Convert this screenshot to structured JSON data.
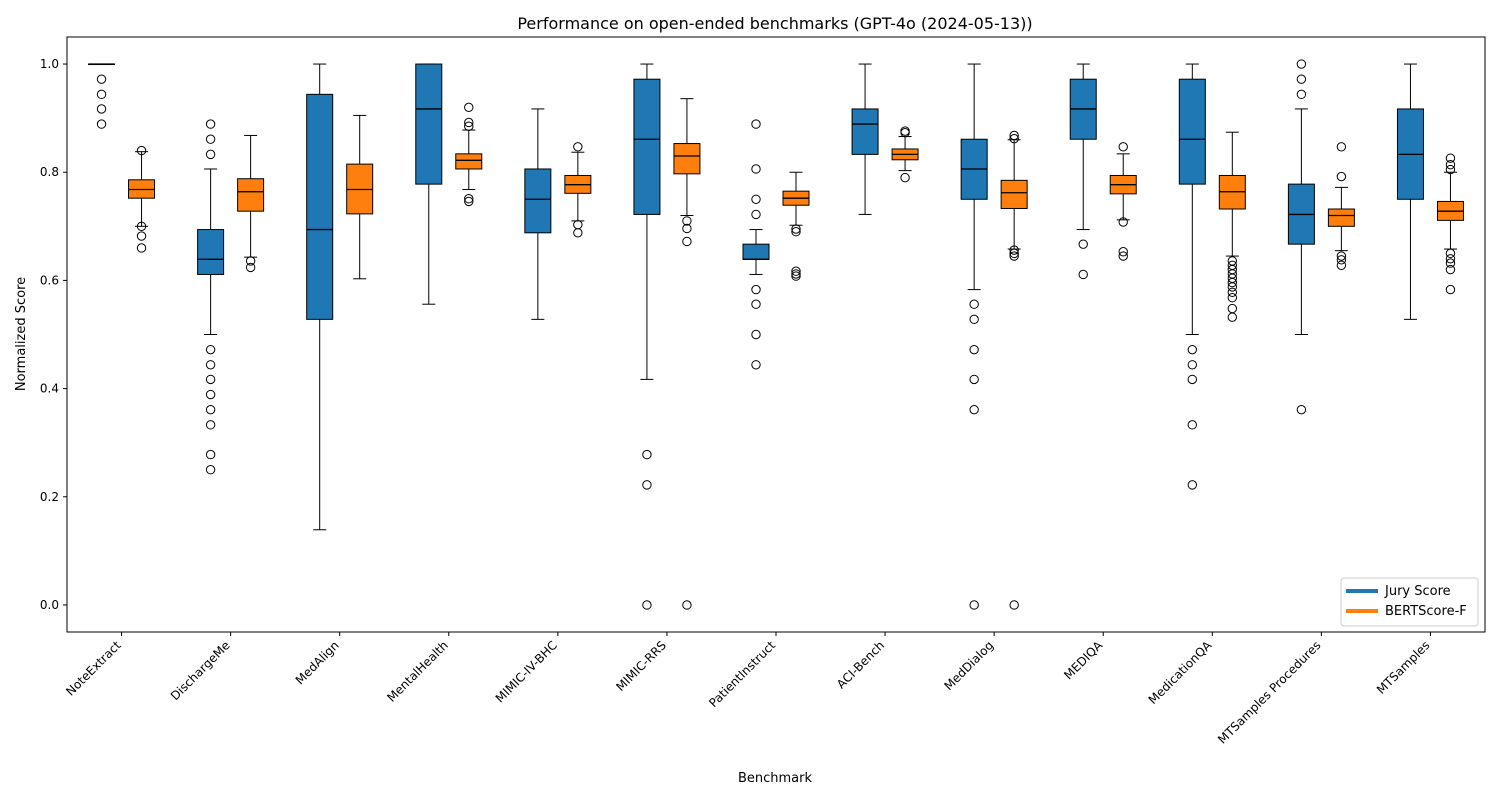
{
  "chart_data": {
    "type": "box",
    "title": "Performance on open-ended benchmarks (GPT-4o (2024-05-13))",
    "xlabel": "Benchmark",
    "ylabel": "Normalized Score",
    "ylim": [
      -0.05,
      1.05
    ],
    "yticks": [
      "0.0",
      "0.2",
      "0.4",
      "0.6",
      "0.8",
      "1.0"
    ],
    "legend": {
      "position": "bottom-right",
      "entries": [
        {
          "label": "Jury Score",
          "color": "#1f77b4"
        },
        {
          "label": "BERTScore-F",
          "color": "#ff7f0e"
        }
      ]
    },
    "categories": [
      "NoteExtract",
      "DischargeMe",
      "MedAlign",
      "MentalHealth",
      "MIMIC-IV-BHC",
      "MIMIC-RRS",
      "PatientInstruct",
      "ACI-Bench",
      "MedDialog",
      "MEDIQA",
      "MedicationQA",
      "MTSamples Procedures",
      "MTSamples"
    ],
    "series": [
      {
        "name": "Jury Score",
        "color": "#1f77b4",
        "boxes": [
          {
            "whislo": 1.0,
            "q1": 1.0,
            "med": 1.0,
            "q3": 1.0,
            "whishi": 1.0,
            "fliers": [
              0.972,
              0.944,
              0.917,
              0.889
            ]
          },
          {
            "whislo": 0.5,
            "q1": 0.611,
            "med": 0.639,
            "q3": 0.694,
            "whishi": 0.806,
            "fliers": [
              0.889,
              0.861,
              0.833,
              0.472,
              0.444,
              0.417,
              0.389,
              0.361,
              0.333,
              0.278,
              0.25
            ]
          },
          {
            "whislo": 0.139,
            "q1": 0.528,
            "med": 0.694,
            "q3": 0.944,
            "whishi": 1.0,
            "fliers": []
          },
          {
            "whislo": 0.556,
            "q1": 0.778,
            "med": 0.917,
            "q3": 1.0,
            "whishi": 1.0,
            "fliers": []
          },
          {
            "whislo": 0.528,
            "q1": 0.688,
            "med": 0.75,
            "q3": 0.806,
            "whishi": 0.917,
            "fliers": []
          },
          {
            "whislo": 0.417,
            "q1": 0.722,
            "med": 0.861,
            "q3": 0.972,
            "whishi": 1.0,
            "fliers": [
              0.278,
              0.222,
              0.0
            ]
          },
          {
            "whislo": 0.611,
            "q1": 0.639,
            "med": 0.639,
            "q3": 0.667,
            "whishi": 0.694,
            "fliers": [
              0.889,
              0.806,
              0.75,
              0.722,
              0.583,
              0.556,
              0.5,
              0.444
            ]
          },
          {
            "whislo": 0.722,
            "q1": 0.833,
            "med": 0.889,
            "q3": 0.917,
            "whishi": 1.0,
            "fliers": []
          },
          {
            "whislo": 0.583,
            "q1": 0.75,
            "med": 0.806,
            "q3": 0.861,
            "whishi": 1.0,
            "fliers": [
              0.556,
              0.528,
              0.472,
              0.417,
              0.361,
              0.0
            ]
          },
          {
            "whislo": 0.694,
            "q1": 0.861,
            "med": 0.917,
            "q3": 0.972,
            "whishi": 1.0,
            "fliers": [
              0.667,
              0.611
            ]
          },
          {
            "whislo": 0.5,
            "q1": 0.778,
            "med": 0.861,
            "q3": 0.972,
            "whishi": 1.0,
            "fliers": [
              0.472,
              0.444,
              0.417,
              0.333,
              0.222
            ]
          },
          {
            "whislo": 0.5,
            "q1": 0.667,
            "med": 0.722,
            "q3": 0.778,
            "whishi": 0.917,
            "fliers": [
              1.0,
              0.972,
              0.944,
              0.361
            ]
          },
          {
            "whislo": 0.528,
            "q1": 0.75,
            "med": 0.833,
            "q3": 0.917,
            "whishi": 1.0,
            "fliers": []
          }
        ]
      },
      {
        "name": "BERTScore-F",
        "color": "#ff7f0e",
        "boxes": [
          {
            "whislo": 0.7,
            "q1": 0.752,
            "med": 0.768,
            "q3": 0.786,
            "whishi": 0.838,
            "fliers": [
              0.84,
              0.7,
              0.682,
              0.66
            ]
          },
          {
            "whislo": 0.643,
            "q1": 0.728,
            "med": 0.764,
            "q3": 0.788,
            "whishi": 0.868,
            "fliers": [
              0.636,
              0.624
            ]
          },
          {
            "whislo": 0.603,
            "q1": 0.723,
            "med": 0.768,
            "q3": 0.815,
            "whishi": 0.905,
            "fliers": []
          },
          {
            "whislo": 0.768,
            "q1": 0.806,
            "med": 0.822,
            "q3": 0.834,
            "whishi": 0.878,
            "fliers": [
              0.92,
              0.892,
              0.885,
              0.751,
              0.746
            ]
          },
          {
            "whislo": 0.71,
            "q1": 0.761,
            "med": 0.777,
            "q3": 0.794,
            "whishi": 0.837,
            "fliers": [
              0.847,
              0.703,
              0.688
            ]
          },
          {
            "whislo": 0.72,
            "q1": 0.797,
            "med": 0.83,
            "q3": 0.853,
            "whishi": 0.936,
            "fliers": [
              0.71,
              0.696,
              0.672,
              0.0
            ]
          },
          {
            "whislo": 0.702,
            "q1": 0.739,
            "med": 0.752,
            "q3": 0.765,
            "whishi": 0.8,
            "fliers": [
              0.695,
              0.69,
              0.617,
              0.612,
              0.608
            ]
          },
          {
            "whislo": 0.803,
            "q1": 0.823,
            "med": 0.833,
            "q3": 0.843,
            "whishi": 0.866,
            "fliers": [
              0.876,
              0.873,
              0.79
            ]
          },
          {
            "whislo": 0.658,
            "q1": 0.733,
            "med": 0.762,
            "q3": 0.785,
            "whishi": 0.86,
            "fliers": [
              0.868,
              0.862,
              0.656,
              0.65,
              0.645,
              0.0
            ]
          },
          {
            "whislo": 0.712,
            "q1": 0.76,
            "med": 0.777,
            "q3": 0.794,
            "whishi": 0.834,
            "fliers": [
              0.847,
              0.708,
              0.653,
              0.645
            ]
          },
          {
            "whislo": 0.645,
            "q1": 0.732,
            "med": 0.764,
            "q3": 0.794,
            "whishi": 0.874,
            "fliers": [
              0.636,
              0.628,
              0.62,
              0.612,
              0.604,
              0.596,
              0.588,
              0.578,
              0.568,
              0.548,
              0.532
            ]
          },
          {
            "whislo": 0.655,
            "q1": 0.7,
            "med": 0.72,
            "q3": 0.732,
            "whishi": 0.772,
            "fliers": [
              0.847,
              0.792,
              0.645,
              0.638,
              0.628
            ]
          },
          {
            "whislo": 0.658,
            "q1": 0.711,
            "med": 0.728,
            "q3": 0.746,
            "whishi": 0.8,
            "fliers": [
              0.826,
              0.814,
              0.805,
              0.65,
              0.64,
              0.632,
              0.62,
              0.583
            ]
          }
        ]
      }
    ]
  }
}
